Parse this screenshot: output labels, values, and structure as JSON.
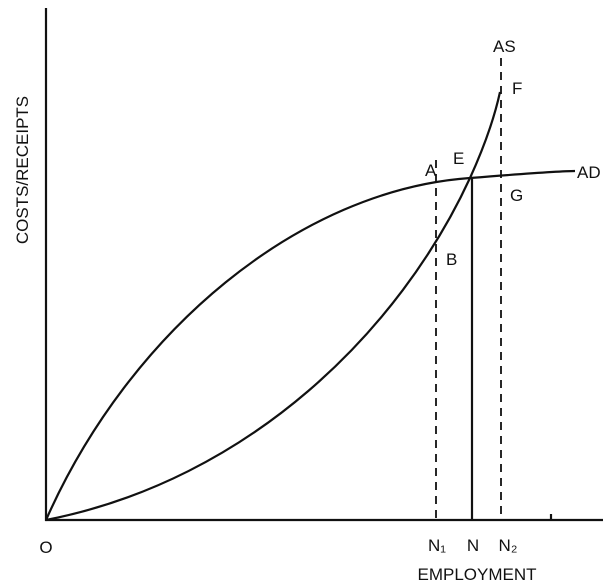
{
  "axes": {
    "y_label": "COSTS/RECEIPTS",
    "x_label": "EMPLOYMENT",
    "origin": "O"
  },
  "curves": {
    "supply": "AS",
    "demand": "AD"
  },
  "points": {
    "a": "A",
    "b": "B",
    "e": "E",
    "f": "F",
    "g": "G"
  },
  "x_points": [
    "N₁",
    "N",
    "N₂"
  ]
}
